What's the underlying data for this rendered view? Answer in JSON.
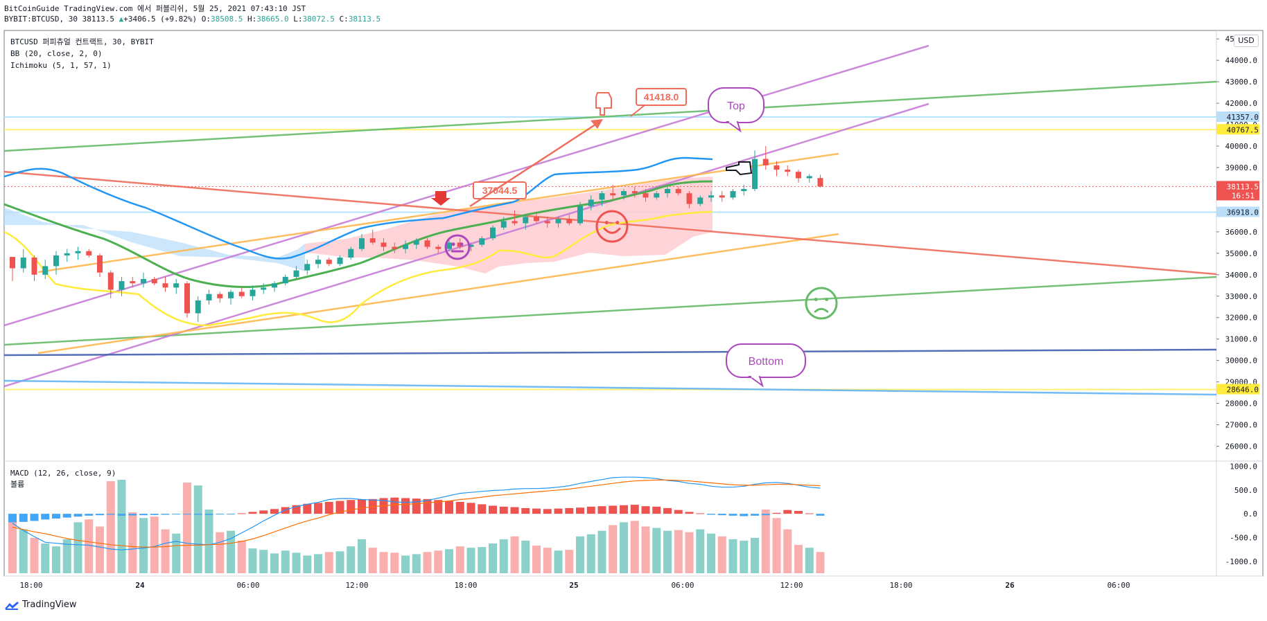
{
  "header": {
    "line1": "BitCoinGuide TradingView.com 에서 퍼블리쉬, 5월 25, 2021 07:43:10 JST",
    "symbol": "BYBIT:BTCUSD, 30 38113.5",
    "change_arrow": "▲",
    "change": "+3406.5 (+9.82%)",
    "o_label": "O:",
    "o_value": "38508.5",
    "h_label": "H:",
    "h_value": "38665.0",
    "l_label": "L:",
    "l_value": "38072.5",
    "c_label": "C:",
    "c_value": "38113.5"
  },
  "legend": {
    "instrument": "BTCUSD 퍼피츄얼 컨트랙트, 30, BYBIT",
    "bb": "BB (20, close, 2, 0)",
    "ichimoku": "Ichimoku (5, 1, 57, 1)",
    "macd": "MACD (12, 26, close, 9)",
    "volume": "볼륨"
  },
  "currency_button": "USD",
  "brand": "TradingView",
  "colors": {
    "up": "#26a69a",
    "down": "#ef5350",
    "bb_basis": "#4caf50",
    "bb_band": "#2196f3",
    "ichi_lead": "#ffeb3b",
    "cloud_up": "#bbdefb",
    "cloud_down": "#ffcdd2",
    "trend_purple": "#c77dd7",
    "trend_green": "#66bb6a",
    "trend_orange": "#ffb74d",
    "trend_red": "#ef6c5a",
    "trend_blue": "#3f5fb0",
    "macd_line": "#2196f3",
    "signal_line": "#ff6d00",
    "accent_yellow": "#ffeb3b",
    "price_label": "#ef5350"
  },
  "chart_data": {
    "type": "candlestick",
    "price_axis": {
      "ticks": [
        "45000.0",
        "44000.0",
        "43000.0",
        "42000.0",
        "41000.0",
        "40000.0",
        "39000.0",
        "38000.0",
        "37000.0",
        "36000.0",
        "35000.0",
        "34000.0",
        "33000.0",
        "32000.0",
        "31000.0",
        "30000.0",
        "29000.0",
        "28000.0",
        "27000.0",
        "26000.0"
      ],
      "ylim": [
        25500,
        45200
      ]
    },
    "price_labels": [
      {
        "value": 41357.0,
        "text": "41357.0",
        "style": "blue"
      },
      {
        "value": 40767.5,
        "text": "40767.5",
        "style": "yellow"
      },
      {
        "value": 38113.5,
        "text": "38113.5",
        "sub": "16:51",
        "style": "red"
      },
      {
        "value": 36918.0,
        "text": "36918.0",
        "style": "blue"
      },
      {
        "value": 28646.0,
        "text": "28646.0",
        "style": "yellow"
      }
    ],
    "horizontal_lines": [
      {
        "value": 41357,
        "color": "#b3e5fc"
      },
      {
        "value": 40767.5,
        "color": "#fff176"
      },
      {
        "value": 36918,
        "color": "#b3e5fc"
      },
      {
        "value": 28646,
        "color": "#fff176"
      }
    ],
    "time_axis": [
      "18:00",
      "24",
      "06:00",
      "12:00",
      "18:00",
      "25",
      "06:00",
      "12:00",
      "18:00",
      "26",
      "06:00"
    ],
    "candles": [
      [
        34830,
        34830,
        33700,
        34300
      ],
      [
        34300,
        35200,
        34100,
        34800
      ],
      [
        34800,
        34900,
        33700,
        34000
      ],
      [
        34000,
        34700,
        33800,
        34400
      ],
      [
        34400,
        35100,
        34000,
        34900
      ],
      [
        34900,
        35200,
        34600,
        35000
      ],
      [
        35000,
        35300,
        34700,
        35100
      ],
      [
        35100,
        35200,
        34800,
        34900
      ],
      [
        34900,
        35000,
        33900,
        34100
      ],
      [
        34100,
        34200,
        32900,
        33300
      ],
      [
        33300,
        33900,
        33000,
        33700
      ],
      [
        33700,
        33900,
        33400,
        33600
      ],
      [
        33600,
        34100,
        33400,
        33800
      ],
      [
        33800,
        33900,
        33500,
        33600
      ],
      [
        33600,
        33900,
        33200,
        33400
      ],
      [
        33400,
        33800,
        33100,
        33600
      ],
      [
        33600,
        33700,
        32000,
        32200
      ],
      [
        32200,
        33000,
        31800,
        32800
      ],
      [
        32800,
        33300,
        32600,
        33100
      ],
      [
        33100,
        33200,
        32700,
        32900
      ],
      [
        32900,
        33300,
        32600,
        33200
      ],
      [
        33200,
        33400,
        32900,
        33000
      ],
      [
        33000,
        33500,
        32800,
        33300
      ],
      [
        33300,
        33600,
        33100,
        33400
      ],
      [
        33400,
        33700,
        33200,
        33600
      ],
      [
        33600,
        34000,
        33500,
        33900
      ],
      [
        33900,
        34400,
        33800,
        34200
      ],
      [
        34200,
        34700,
        34000,
        34500
      ],
      [
        34500,
        34900,
        34300,
        34700
      ],
      [
        34700,
        34800,
        34400,
        34500
      ],
      [
        34500,
        34900,
        34400,
        34800
      ],
      [
        34800,
        35300,
        34700,
        35200
      ],
      [
        35200,
        35900,
        35100,
        35700
      ],
      [
        35700,
        36100,
        35400,
        35500
      ],
      [
        35500,
        35700,
        35100,
        35300
      ],
      [
        35300,
        35500,
        35000,
        35200
      ],
      [
        35200,
        35600,
        35000,
        35400
      ],
      [
        35400,
        35700,
        35200,
        35600
      ],
      [
        35600,
        35700,
        35200,
        35300
      ],
      [
        35300,
        35400,
        35000,
        35200
      ],
      [
        35200,
        35600,
        35100,
        35500
      ],
      [
        35500,
        35700,
        35200,
        35300
      ],
      [
        35300,
        35500,
        35100,
        35400
      ],
      [
        35400,
        35800,
        35300,
        35700
      ],
      [
        35700,
        36300,
        35600,
        36200
      ],
      [
        36200,
        36700,
        36100,
        36500
      ],
      [
        36500,
        37000,
        36300,
        36400
      ],
      [
        36400,
        36800,
        36100,
        36700
      ],
      [
        36700,
        36900,
        36400,
        36500
      ],
      [
        36500,
        36700,
        36200,
        36400
      ],
      [
        36400,
        36700,
        36200,
        36600
      ],
      [
        36600,
        36800,
        36300,
        36400
      ],
      [
        36400,
        37400,
        36300,
        37200
      ],
      [
        37200,
        37700,
        37000,
        37500
      ],
      [
        37500,
        37900,
        37200,
        37800
      ],
      [
        37800,
        38200,
        37500,
        37700
      ],
      [
        37700,
        38000,
        37500,
        37900
      ],
      [
        37900,
        38100,
        37600,
        37800
      ],
      [
        37800,
        38000,
        37400,
        37600
      ],
      [
        37600,
        37900,
        37500,
        37800
      ],
      [
        37800,
        38100,
        37600,
        38000
      ],
      [
        38000,
        38100,
        37700,
        37800
      ],
      [
        37800,
        37900,
        37100,
        37300
      ],
      [
        37300,
        37700,
        37200,
        37600
      ],
      [
        37600,
        37900,
        37400,
        37700
      ],
      [
        37700,
        37900,
        37400,
        37600
      ],
      [
        37600,
        38000,
        37500,
        37900
      ],
      [
        37900,
        38200,
        37700,
        38000
      ],
      [
        38000,
        39800,
        37900,
        39400
      ],
      [
        39400,
        40000,
        38900,
        39100
      ],
      [
        39100,
        39300,
        38600,
        38900
      ],
      [
        38900,
        39100,
        38600,
        38800
      ],
      [
        38800,
        38900,
        38300,
        38500
      ],
      [
        38500,
        38700,
        38300,
        38600
      ],
      [
        38508.5,
        38665,
        38072.5,
        38113.5
      ]
    ],
    "volume": [
      780,
      620,
      500,
      420,
      380,
      480,
      720,
      760,
      660,
      1300,
      1320,
      860,
      780,
      800,
      620,
      560,
      1280,
      1240,
      900,
      580,
      600,
      460,
      350,
      330,
      280,
      320,
      290,
      250,
      270,
      300,
      310,
      380,
      480,
      360,
      300,
      290,
      250,
      270,
      300,
      320,
      340,
      380,
      360,
      370,
      420,
      480,
      520,
      460,
      390,
      360,
      320,
      330,
      520,
      550,
      600,
      680,
      720,
      740,
      660,
      640,
      600,
      610,
      580,
      620,
      560,
      520,
      480,
      460,
      500,
      900,
      780,
      620,
      400,
      360,
      300
    ],
    "hist": [
      -180,
      -170,
      -150,
      -120,
      -100,
      -80,
      -60,
      -40,
      -30,
      -20,
      -40,
      -35,
      -30,
      -25,
      -20,
      -10,
      -15,
      -20,
      -25,
      -10,
      -5,
      10,
      40,
      70,
      100,
      140,
      180,
      210,
      230,
      250,
      270,
      290,
      300,
      310,
      330,
      340,
      330,
      320,
      310,
      290,
      270,
      250,
      230,
      200,
      170,
      150,
      140,
      120,
      110,
      100,
      110,
      120,
      130,
      150,
      160,
      170,
      180,
      190,
      160,
      150,
      120,
      80,
      40,
      10,
      -20,
      -30,
      -40,
      -50,
      -40,
      -30,
      20,
      80,
      60,
      10,
      -40
    ],
    "macd": [
      -200,
      -350,
      -480,
      -600,
      -620,
      -640,
      -650,
      -660,
      -700,
      -740,
      -760,
      -740,
      -720,
      -690,
      -620,
      -580,
      -620,
      -640,
      -650,
      -600,
      -520,
      -400,
      -280,
      -150,
      -30,
      80,
      150,
      200,
      240,
      300,
      320,
      320,
      300,
      290,
      280,
      250,
      240,
      250,
      280,
      330,
      380,
      430,
      450,
      470,
      490,
      500,
      520,
      530,
      530,
      540,
      560,
      590,
      640,
      680,
      720,
      760,
      770,
      770,
      760,
      740,
      700,
      680,
      640,
      620,
      580,
      560,
      560,
      580,
      620,
      650,
      660,
      640,
      600,
      560,
      540
    ],
    "signal": [
      -280,
      -330,
      -380,
      -420,
      -470,
      -520,
      -560,
      -590,
      -620,
      -650,
      -670,
      -690,
      -700,
      -700,
      -690,
      -670,
      -660,
      -660,
      -650,
      -640,
      -620,
      -580,
      -530,
      -460,
      -380,
      -300,
      -220,
      -150,
      -90,
      -20,
      40,
      80,
      120,
      150,
      170,
      190,
      200,
      210,
      230,
      250,
      270,
      300,
      320,
      350,
      380,
      400,
      420,
      440,
      460,
      480,
      500,
      520,
      550,
      580,
      610,
      640,
      670,
      690,
      700,
      710,
      710,
      700,
      690,
      670,
      650,
      630,
      610,
      600,
      600,
      610,
      620,
      620,
      610,
      600,
      590
    ],
    "macd_axis": {
      "ticks": [
        "1000.0",
        "500.0",
        "0.0",
        "-500.0",
        "-1000.0"
      ],
      "ylim": [
        -1250,
        1050
      ]
    },
    "annotations": [
      {
        "text": "41418.0",
        "kind": "price-box"
      },
      {
        "text": "37044.5",
        "kind": "price-box"
      },
      {
        "text": "Top",
        "kind": "bubble"
      },
      {
        "text": "Bottom",
        "kind": "bubble"
      }
    ]
  }
}
